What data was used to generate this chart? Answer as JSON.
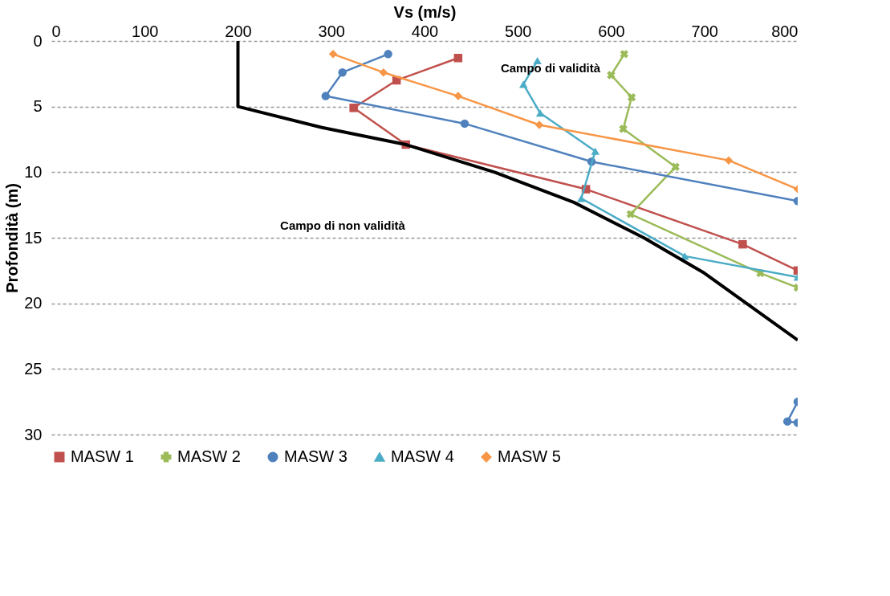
{
  "chart_data": {
    "type": "line",
    "xlabel": "Vs (m/s)",
    "ylabel": "Profondità (m)",
    "xlim": [
      0,
      800
    ],
    "xticks": [
      0,
      100,
      200,
      300,
      400,
      500,
      600,
      700,
      800
    ],
    "ylim": [
      30,
      0
    ],
    "yticks": [
      0,
      5,
      10,
      15,
      20,
      25,
      30
    ],
    "grid": "y",
    "legend": "bottom",
    "annotations": [
      "Campo di validità",
      "Campo di non validità"
    ],
    "series": [
      {
        "name": "MASW 1",
        "color": "#c0504d",
        "marker": "square",
        "x": [
          436,
          370,
          324,
          380,
          573,
          741,
          800
        ],
        "values": [
          1.3,
          3.0,
          5.1,
          7.9,
          11.3,
          15.5,
          17.5
        ]
      },
      {
        "name": "MASW 2",
        "color": "#9bbb59",
        "marker": "cross",
        "x": [
          614,
          600,
          622,
          613,
          669,
          621,
          760,
          800
        ],
        "values": [
          1.0,
          2.6,
          4.3,
          6.7,
          9.6,
          13.2,
          17.7,
          18.8
        ]
      },
      {
        "name": "MASW 3",
        "color": "#4f81bd",
        "marker": "circle",
        "x": [
          361,
          312,
          294,
          443,
          579,
          800,
          null,
          800,
          789,
          800
        ],
        "values": [
          1.0,
          2.4,
          4.2,
          6.3,
          9.2,
          12.2,
          null,
          27.5,
          29.0,
          29.1
        ]
      },
      {
        "name": "MASW 4",
        "color": "#4bacc6",
        "marker": "triangle",
        "x": [
          521,
          506,
          524,
          583,
          568,
          679,
          800
        ],
        "values": [
          1.5,
          3.3,
          5.5,
          8.4,
          12.0,
          16.4,
          18.0
        ]
      },
      {
        "name": "MASW 5",
        "color": "#f79646",
        "marker": "diamond",
        "x": [
          302,
          356,
          436,
          523,
          726,
          800
        ],
        "values": [
          1.0,
          2.4,
          4.2,
          6.4,
          9.1,
          11.3
        ]
      },
      {
        "color": "#000000",
        "marker": "none",
        "x": [
          200,
          200,
          290,
          380,
          475,
          560,
          635,
          700,
          745,
          800
        ],
        "values": [
          0,
          5,
          6.6,
          7.9,
          10,
          12.3,
          15,
          17.7,
          20,
          22.8
        ]
      }
    ]
  }
}
